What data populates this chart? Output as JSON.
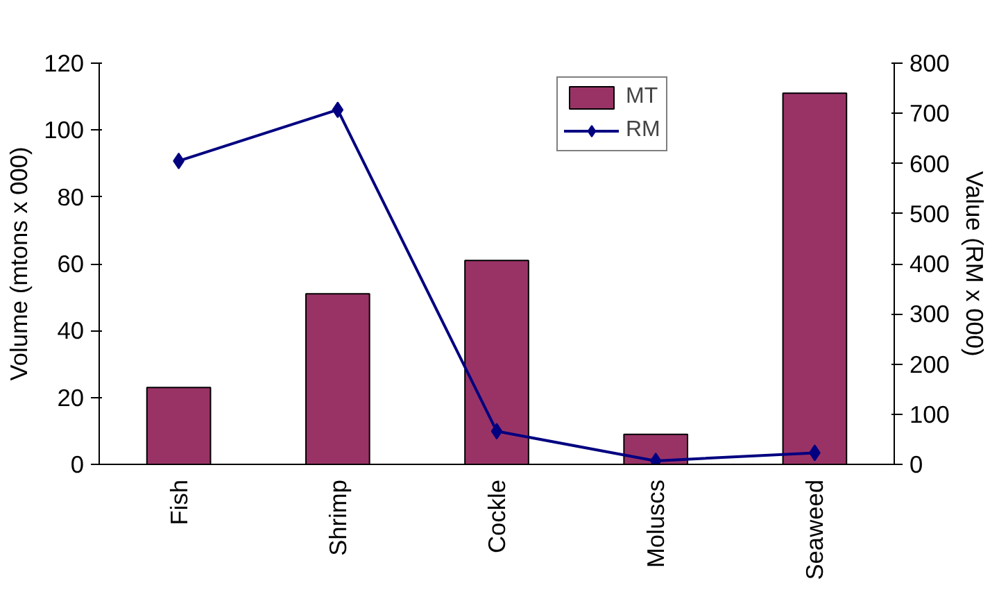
{
  "chart_data": {
    "type": "bar",
    "categories": [
      "Fish",
      "Shrimp",
      "Cockle",
      "Moluscs",
      "Seaweed"
    ],
    "series": [
      {
        "name": "MT",
        "color": "#993366",
        "values": [
          23,
          51,
          61,
          9,
          111
        ]
      },
      {
        "name": "RM",
        "type": "line",
        "axis": "y2",
        "color": "#000080",
        "values": [
          605,
          707,
          66,
          7,
          23
        ]
      }
    ],
    "ylabel": "Volume (mtons x 000)",
    "y2label": "Value (RM x 000)",
    "ylim": [
      0,
      120
    ],
    "yticks": [
      0,
      20,
      40,
      60,
      80,
      100,
      120
    ],
    "y2lim": [
      0,
      800
    ],
    "y2ticks": [
      0,
      100,
      200,
      300,
      400,
      500,
      600,
      700,
      800
    ],
    "marker": "diamond",
    "line_style": "solid",
    "grid": false,
    "legend": "top"
  }
}
